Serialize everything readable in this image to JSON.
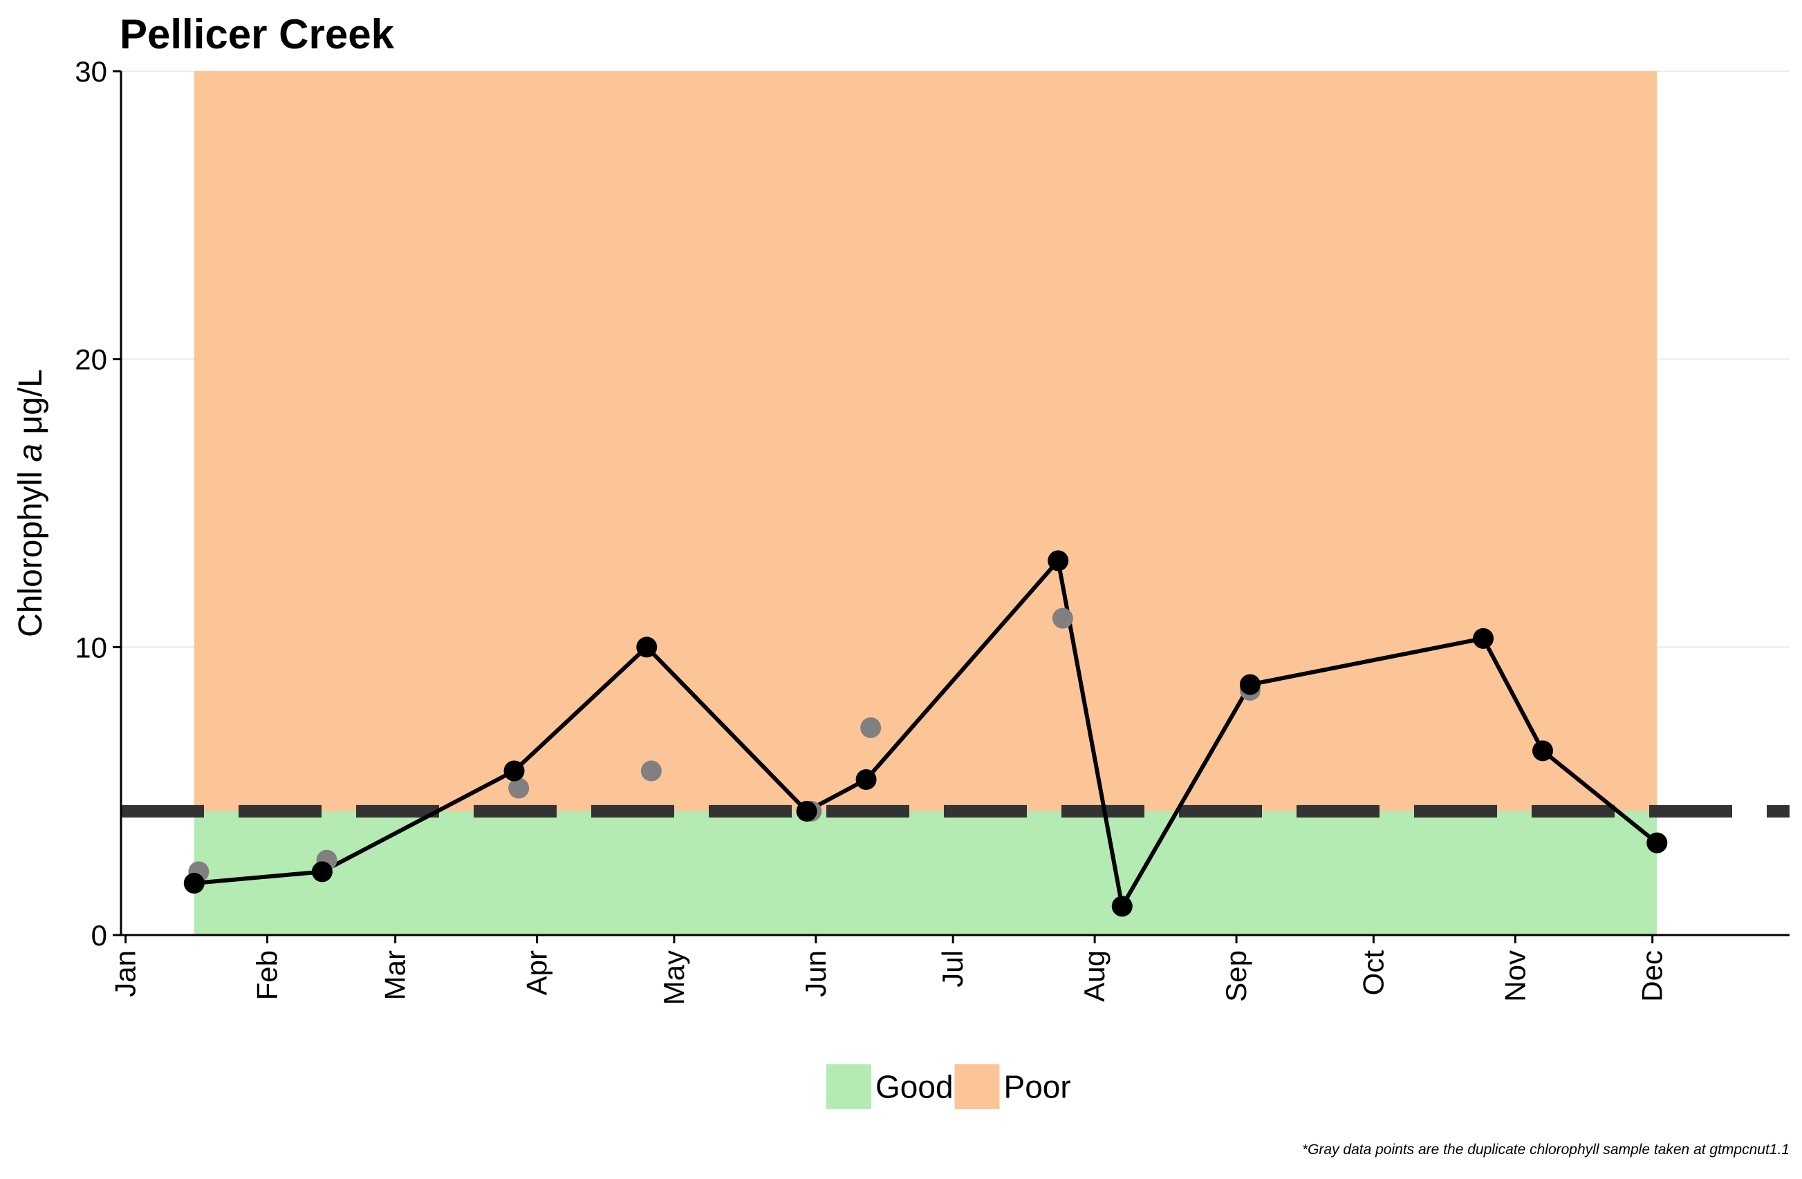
{
  "chart_data": {
    "type": "line",
    "title": "Pellicer Creek",
    "ylabel_prefix": "Chlorophyll ",
    "ylabel_italic": "a",
    "ylabel_suffix": " μg/L",
    "xlabel": "",
    "ylim": [
      0,
      30
    ],
    "y_ticks": [
      0,
      10,
      20,
      30
    ],
    "x_range": [
      "2020-12-31",
      "2021-12-31"
    ],
    "x_ticks": [
      {
        "label": "Jan",
        "date": "2021-01-01"
      },
      {
        "label": "Feb",
        "date": "2021-02-01"
      },
      {
        "label": "Mar",
        "date": "2021-03-01"
      },
      {
        "label": "Apr",
        "date": "2021-04-01"
      },
      {
        "label": "May",
        "date": "2021-05-01"
      },
      {
        "label": "Jun",
        "date": "2021-06-01"
      },
      {
        "label": "Jul",
        "date": "2021-07-01"
      },
      {
        "label": "Aug",
        "date": "2021-08-01"
      },
      {
        "label": "Sep",
        "date": "2021-09-01"
      },
      {
        "label": "Oct",
        "date": "2021-10-01"
      },
      {
        "label": "Nov",
        "date": "2021-11-01"
      },
      {
        "label": "Dec",
        "date": "2021-12-01"
      }
    ],
    "grid": "horizontal",
    "threshold": 4.3,
    "bands": [
      {
        "name": "Good",
        "color": "#b3ebb3",
        "x_start": "2021-01-16",
        "x_end": "2021-12-02",
        "y_start": 0,
        "y_end": 4.3
      },
      {
        "name": "Poor",
        "color": "#fcc597",
        "x_start": "2021-01-16",
        "x_end": "2021-12-02",
        "y_start": 4.3,
        "y_end": 30
      }
    ],
    "series": [
      {
        "color": "#000000",
        "line": true,
        "points": [
          {
            "x": "2021-01-16",
            "y": 1.8
          },
          {
            "x": "2021-02-13",
            "y": 2.2
          },
          {
            "x": "2021-03-27",
            "y": 5.7
          },
          {
            "x": "2021-04-25",
            "y": 10.0
          },
          {
            "x": "2021-05-30",
            "y": 4.3
          },
          {
            "x": "2021-06-12",
            "y": 5.4
          },
          {
            "x": "2021-07-24",
            "y": 13.0
          },
          {
            "x": "2021-08-07",
            "y": 1.0
          },
          {
            "x": "2021-09-04",
            "y": 8.7
          },
          {
            "x": "2021-10-25",
            "y": 10.3
          },
          {
            "x": "2021-11-07",
            "y": 6.4
          },
          {
            "x": "2021-12-02",
            "y": 3.2
          }
        ]
      },
      {
        "color": "#808080",
        "line": false,
        "points": [
          {
            "x": "2021-01-17",
            "y": 2.2
          },
          {
            "x": "2021-02-14",
            "y": 2.6
          },
          {
            "x": "2021-03-28",
            "y": 5.1
          },
          {
            "x": "2021-04-26",
            "y": 5.7
          },
          {
            "x": "2021-05-31",
            "y": 4.3
          },
          {
            "x": "2021-06-13",
            "y": 7.2
          },
          {
            "x": "2021-07-25",
            "y": 11.0
          },
          {
            "x": "2021-08-07",
            "y": 1.0
          },
          {
            "x": "2021-09-04",
            "y": 8.5
          },
          {
            "x": "2021-12-02",
            "y": 3.2
          }
        ]
      }
    ],
    "legend": {
      "position": "bottom",
      "entries": [
        {
          "label": "Good",
          "color": "#b3ebb3"
        },
        {
          "label": "Poor",
          "color": "#fcc597"
        }
      ]
    },
    "footnote": "*Gray data points are the duplicate chlorophyll sample taken at gtmpcnut1.1"
  }
}
